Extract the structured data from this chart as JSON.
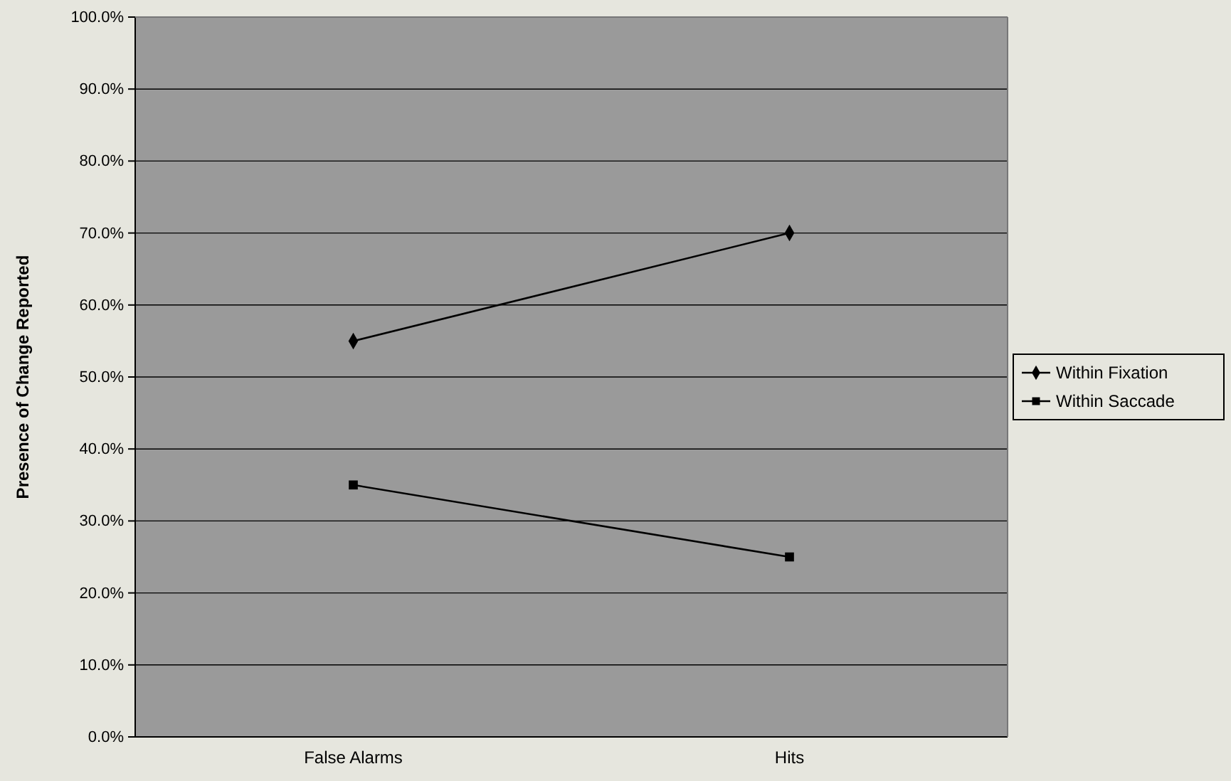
{
  "chart_data": {
    "type": "line",
    "ylabel": "Presence of Change Reported",
    "categories": [
      "False Alarms",
      "Hits"
    ],
    "series": [
      {
        "name": "Within Fixation",
        "color": "#000000",
        "values": [
          55,
          70
        ],
        "marker": "diamond"
      },
      {
        "name": "Within Saccade",
        "color": "#000000",
        "values": [
          35,
          25
        ],
        "marker": "square"
      }
    ],
    "ylim": [
      0,
      100
    ],
    "yticks": [
      {
        "value": 0,
        "label": "0.0%"
      },
      {
        "value": 10,
        "label": "10.0%"
      },
      {
        "value": 20,
        "label": "20.0%"
      },
      {
        "value": 30,
        "label": "30.0%"
      },
      {
        "value": 40,
        "label": "40.0%"
      },
      {
        "value": 50,
        "label": "50.0%"
      },
      {
        "value": 60,
        "label": "60.0%"
      },
      {
        "value": 70,
        "label": "70.0%"
      },
      {
        "value": 80,
        "label": "80.0%"
      },
      {
        "value": 90,
        "label": "90.0%"
      },
      {
        "value": 100,
        "label": "100.0%"
      }
    ],
    "grid": "y",
    "legend": "right",
    "line_style": "solid"
  }
}
